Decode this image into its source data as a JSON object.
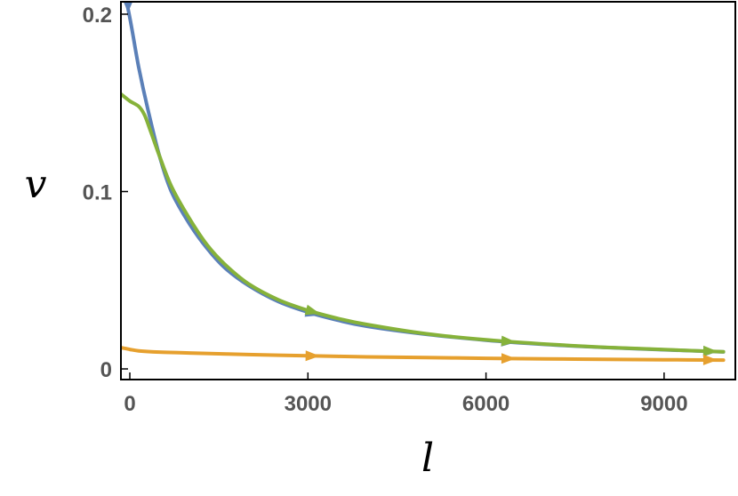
{
  "chart_data": {
    "type": "line",
    "xlabel": "l",
    "ylabel": "v",
    "xlim": [
      -150,
      10200
    ],
    "ylim": [
      -0.006,
      0.207
    ],
    "x_ticks": [
      0,
      3000,
      6000,
      9000
    ],
    "x_tick_labels": [
      "0",
      "3000",
      "6000",
      "9000"
    ],
    "y_ticks": [
      0,
      0.1,
      0.2
    ],
    "y_tick_labels": [
      "0",
      "0.1",
      "0.2"
    ],
    "grid": false,
    "legend": "none",
    "arrow_x_positions": [
      3200,
      6500,
      9900
    ],
    "series": [
      {
        "color": "#5b80b8",
        "x": [
          -150,
          0,
          150,
          300,
          500,
          700,
          1000,
          1300,
          1600,
          2000,
          2500,
          3000,
          3500,
          4000,
          5000,
          6000,
          7000,
          8000,
          9000,
          10000
        ],
        "y": [
          0.222,
          0.198,
          0.17,
          0.147,
          0.12,
          0.1,
          0.082,
          0.068,
          0.057,
          0.047,
          0.038,
          0.032,
          0.0275,
          0.024,
          0.0195,
          0.0162,
          0.0138,
          0.0121,
          0.0108,
          0.0096
        ]
      },
      {
        "color": "#86b23a",
        "x": [
          -150,
          0,
          150,
          250,
          350,
          500,
          700,
          1000,
          1300,
          1600,
          2000,
          2500,
          3000,
          3500,
          4000,
          5000,
          6000,
          7000,
          8000,
          9000,
          10000
        ],
        "y": [
          0.155,
          0.151,
          0.148,
          0.143,
          0.134,
          0.12,
          0.103,
          0.085,
          0.07,
          0.059,
          0.048,
          0.039,
          0.033,
          0.0285,
          0.025,
          0.0198,
          0.0164,
          0.014,
          0.0122,
          0.0109,
          0.0097
        ]
      },
      {
        "color": "#e6a02e",
        "x": [
          -150,
          0,
          150,
          500,
          1000,
          2000,
          3000,
          4000,
          5000,
          6000,
          7000,
          8000,
          9000,
          10000
        ],
        "y": [
          0.012,
          0.011,
          0.0102,
          0.0095,
          0.009,
          0.0081,
          0.0074,
          0.0068,
          0.0064,
          0.006,
          0.0057,
          0.0054,
          0.0052,
          0.005
        ]
      }
    ]
  }
}
